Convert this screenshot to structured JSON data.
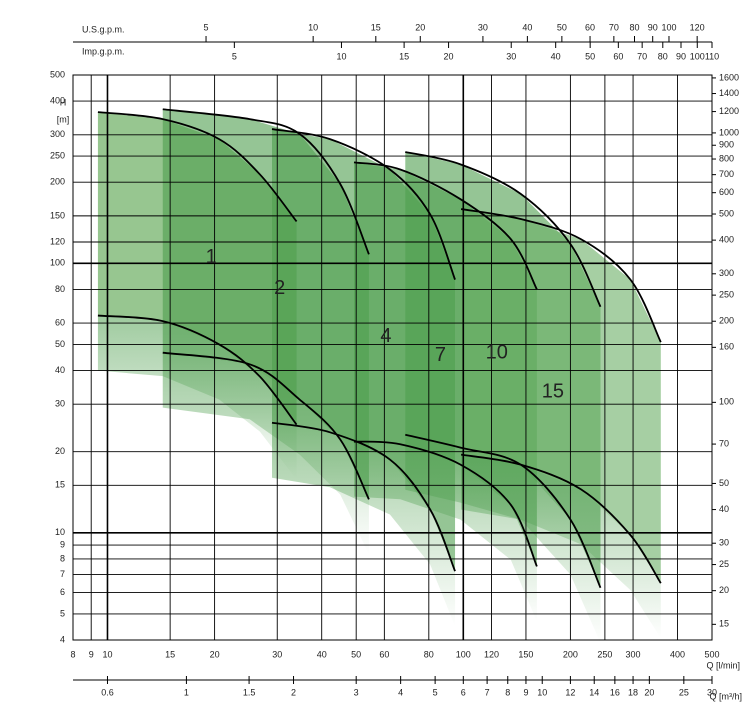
{
  "chart_data": {
    "type": "line",
    "top_label": "U.S.g.p.m.",
    "top2_label": "Imp.g.p.m.",
    "y_label": "H",
    "y_unit": "[m]",
    "x_label": "Q [l/min]",
    "x2_label": "Q [m³/h]",
    "log_x": true,
    "log_y": true,
    "grid": true,
    "xlim": [
      8,
      500
    ],
    "xticks": [
      8,
      9,
      10,
      15,
      20,
      30,
      40,
      50,
      60,
      80,
      100,
      120,
      150,
      200,
      250,
      300,
      400,
      500
    ],
    "ylim": [
      4,
      500
    ],
    "yticks": [
      500,
      400,
      300,
      250,
      200,
      150,
      120,
      100,
      80,
      60,
      50,
      40,
      30,
      20,
      15,
      10,
      9,
      8,
      7,
      6,
      5,
      4
    ],
    "y2lim": [
      13.12,
      1640.4
    ],
    "y2ticks": [
      1600,
      1400,
      1200,
      1000,
      900,
      800,
      700,
      600,
      500,
      400,
      300,
      250,
      200,
      160,
      100,
      70,
      50,
      40,
      30,
      25,
      20,
      15
    ],
    "x2lim": [
      0.48,
      30
    ],
    "x2ticks": [
      0.6,
      1,
      1.5,
      2,
      3,
      4,
      5,
      6,
      7,
      8,
      9,
      10,
      12,
      14,
      16,
      18,
      20,
      25,
      30
    ],
    "x3lim": [
      2.114,
      132.1
    ],
    "x3ticks": [
      5,
      10,
      15,
      20,
      30,
      40,
      50,
      60,
      70,
      80,
      90,
      100,
      120
    ],
    "x4lim": [
      1.76,
      110
    ],
    "x4ticks": [
      5,
      10,
      15,
      20,
      30,
      40,
      50,
      60,
      70,
      80,
      90,
      100,
      110
    ],
    "series": [
      {
        "name": "1",
        "color": "#8cc084",
        "q": [
          9.4,
          14.3,
          20.6,
          26.8,
          34.0
        ],
        "h_max": [
          364,
          343,
          289,
          214,
          143
        ],
        "h_min": [
          64,
          61,
          50,
          38,
          25.2
        ]
      },
      {
        "name": "2",
        "color": "#4f9f4f",
        "q": [
          14.3,
          25.1,
          34.7,
          45.1,
          54.3
        ],
        "h_max": [
          373,
          343,
          302,
          197,
          108
        ],
        "h_min": [
          46.6,
          42.2,
          31.2,
          22.2,
          13.3
        ]
      },
      {
        "name": "4",
        "color": "#4f9f4f",
        "q": [
          29.0,
          42.2,
          62.2,
          80.7,
          94.8
        ],
        "h_max": [
          315,
          289,
          223,
          152,
          87
        ],
        "h_min": [
          25.6,
          23.6,
          18.7,
          12.2,
          7.2
        ]
      },
      {
        "name": "7",
        "color": "#4f9f4f",
        "q": [
          49.3,
          66.5,
          98.2,
          136,
          161
        ],
        "h_max": [
          237,
          223,
          173,
          123,
          80
        ],
        "h_min": [
          21.8,
          21.3,
          17.9,
          12.7,
          7.5
        ]
      },
      {
        "name": "10",
        "color": "#4f9f4f",
        "q": [
          68.7,
          98.2,
          145,
          200,
          243
        ],
        "h_max": [
          259,
          233,
          181,
          118,
          69
        ],
        "h_min": [
          23.1,
          20.7,
          17.9,
          11.2,
          6.25
        ]
      },
      {
        "name": "15",
        "color": "#6aaf65",
        "q": [
          98.6,
          145,
          214,
          295,
          359
        ],
        "h_max": [
          159,
          146,
          123,
          87,
          51
        ],
        "h_min": [
          19.5,
          17.9,
          14.5,
          9.8,
          6.5
        ]
      }
    ]
  }
}
